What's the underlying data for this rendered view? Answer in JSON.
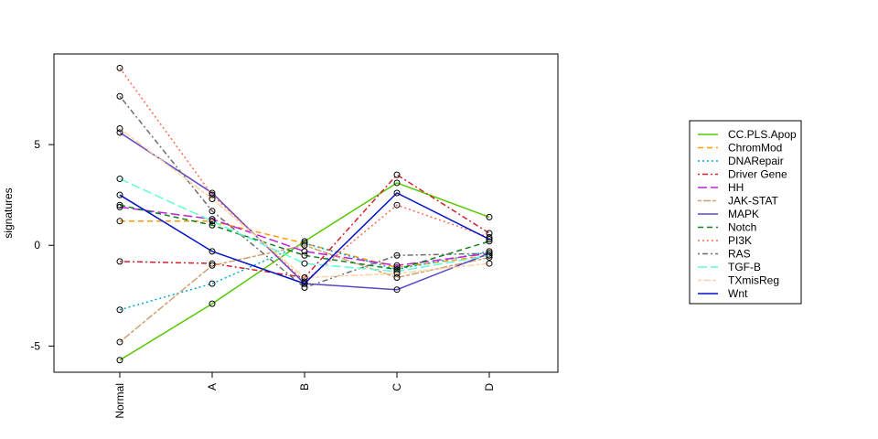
{
  "chart_data": {
    "type": "line",
    "title": "",
    "xlabel": "",
    "ylabel": "signatures",
    "categories": [
      "Normal",
      "A",
      "B",
      "C",
      "D"
    ],
    "ylim": [
      -6.3,
      9.5
    ],
    "yticks": [
      -5,
      0,
      5
    ],
    "grid": false,
    "legend_position": "right",
    "series": [
      {
        "name": "CC.PLS.Apop",
        "color": "#55c800",
        "dash": "solid",
        "values": [
          -5.7,
          -2.9,
          0.2,
          3.1,
          1.4
        ]
      },
      {
        "name": "ChromMod",
        "color": "#ff9a00",
        "dash": "dashed",
        "values": [
          1.2,
          1.2,
          0.1,
          -1.1,
          -0.5
        ]
      },
      {
        "name": "DNARepair",
        "color": "#00a8d0",
        "dash": "dotted",
        "values": [
          -3.2,
          -1.9,
          0.1,
          -1.2,
          -0.3
        ]
      },
      {
        "name": "Driver Gene",
        "color": "#d2202f",
        "dash": "dotdash",
        "values": [
          -0.8,
          -0.9,
          -1.6,
          3.5,
          0.6
        ]
      },
      {
        "name": "HH",
        "color": "#c020e0",
        "dash": "longdash",
        "values": [
          1.9,
          1.3,
          -0.3,
          -1.0,
          -0.4
        ]
      },
      {
        "name": "JAK-STAT",
        "color": "#d2a070",
        "dash": "twodash",
        "values": [
          -4.8,
          -1.0,
          0.0,
          -1.6,
          -0.6
        ]
      },
      {
        "name": "MAPK",
        "color": "#5a46c8",
        "dash": "solid",
        "values": [
          5.6,
          2.6,
          -1.9,
          -2.2,
          -0.4
        ]
      },
      {
        "name": "Notch",
        "color": "#108020",
        "dash": "dashed",
        "values": [
          2.0,
          1.0,
          -0.5,
          -1.2,
          0.2
        ]
      },
      {
        "name": "PI3K",
        "color": "#ff6a50",
        "dash": "dotted",
        "values": [
          8.8,
          2.5,
          -1.8,
          2.0,
          0.4
        ]
      },
      {
        "name": "RAS",
        "color": "#6e6e6e",
        "dash": "dotdash",
        "values": [
          7.4,
          1.7,
          -2.1,
          -0.5,
          -0.4
        ]
      },
      {
        "name": "TGF-B",
        "color": "#60ffd0",
        "dash": "longdash",
        "values": [
          3.3,
          1.2,
          -0.9,
          -1.3,
          -0.5
        ]
      },
      {
        "name": "TXmisReg",
        "color": "#ffd2a8",
        "dash": "twodash",
        "values": [
          5.8,
          2.3,
          -1.6,
          -1.4,
          -0.9
        ]
      },
      {
        "name": "Wnt",
        "color": "#0010c8",
        "dash": "solid",
        "values": [
          2.5,
          -0.3,
          -1.9,
          2.6,
          0.3
        ]
      }
    ]
  }
}
